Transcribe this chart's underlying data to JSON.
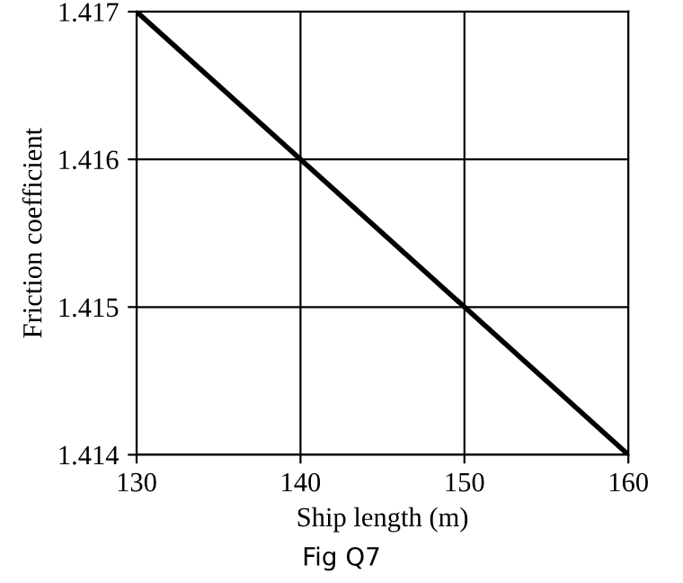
{
  "chart_data": {
    "type": "line",
    "xlabel": "Ship length (m)",
    "ylabel": "Friction coefficient",
    "annotations": [
      "Fig Q7"
    ],
    "x": [
      130,
      160
    ],
    "series": [
      {
        "color": "#000000",
        "values": [
          1.417,
          1.414
        ]
      }
    ],
    "xlim": [
      130,
      160
    ],
    "ylim": [
      1.414,
      1.417
    ],
    "xticks": [
      130,
      140,
      150,
      160
    ],
    "yticks": [
      1.414,
      1.415,
      1.416,
      1.417
    ],
    "grid": true,
    "marker": "none",
    "line_style": "solid"
  }
}
